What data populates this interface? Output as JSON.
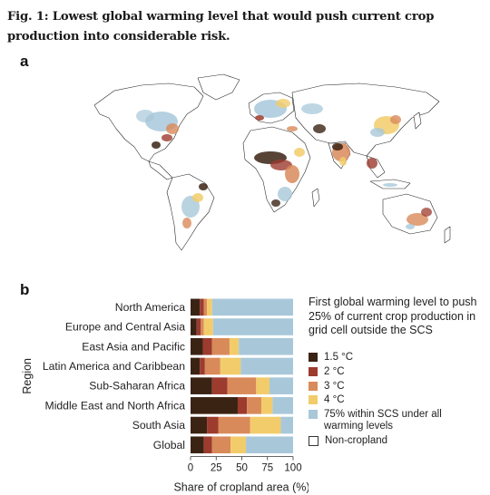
{
  "caption": "Fig. 1: Lowest global warming level that would push current crop production into considerable risk.",
  "panel_a": "a",
  "panel_b": "b",
  "colors": {
    "c15": "#3b2314",
    "c20": "#9c3b2e",
    "c30": "#d98a5a",
    "c40": "#f2cc6a",
    "within": "#a8c8da",
    "noncrop": "#ffffff",
    "land": "#ffffff"
  },
  "legend": {
    "title": "First global warming level to push 25% of current crop production in grid cell outside the SCS",
    "items": [
      {
        "label": "1.5 °C",
        "color": "#3b2314"
      },
      {
        "label": "2 °C",
        "color": "#9c3b2e"
      },
      {
        "label": "3 °C",
        "color": "#d98a5a"
      },
      {
        "label": "4 °C",
        "color": "#f2cc6a"
      },
      {
        "label": "75% within SCS under all warming levels",
        "color": "#a8c8da"
      },
      {
        "label": "Non-cropland",
        "color": "#ffffff"
      }
    ]
  },
  "chart_data": {
    "type": "bar",
    "orientation": "horizontal",
    "stacked": true,
    "ylabel": "Region",
    "xlabel": "Share of cropland area (%)",
    "xlim": [
      0,
      100
    ],
    "xticks": [
      0,
      25,
      50,
      75,
      100
    ],
    "categories": [
      "North America",
      "Europe and Central Asia",
      "East Asia and Pacific",
      "Latin America and Caribbean",
      "Sub-Saharan Africa",
      "Middle East and North Africa",
      "South Asia",
      "Global"
    ],
    "series": [
      {
        "name": "1.5 °C",
        "color": "#3b2314",
        "values": [
          9,
          6,
          12,
          9,
          21,
          46,
          16,
          13
        ]
      },
      {
        "name": "2 °C",
        "color": "#9c3b2e",
        "values": [
          4,
          4,
          9,
          5,
          15,
          9,
          11,
          8
        ]
      },
      {
        "name": "3 °C",
        "color": "#d98a5a",
        "values": [
          3,
          3,
          17,
          15,
          28,
          14,
          31,
          18
        ]
      },
      {
        "name": "4 °C",
        "color": "#f2cc6a",
        "values": [
          5,
          9,
          9,
          20,
          13,
          11,
          30,
          15
        ]
      },
      {
        "name": "75% within SCS under all warming levels",
        "color": "#a8c8da",
        "values": [
          79,
          78,
          53,
          51,
          23,
          20,
          12,
          46
        ]
      }
    ]
  }
}
